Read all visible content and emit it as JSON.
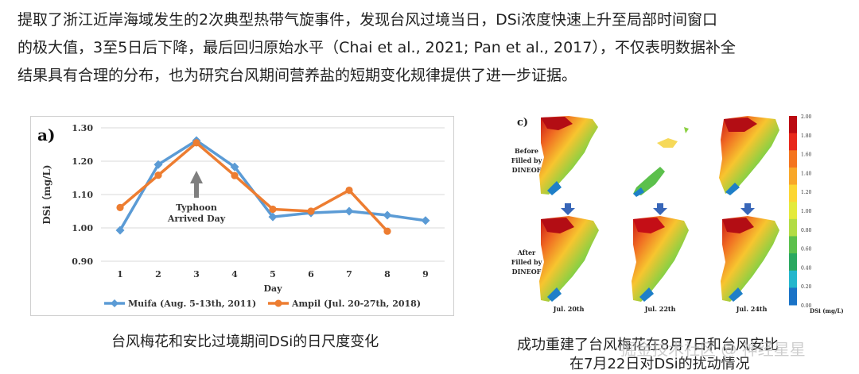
{
  "paragraph": {
    "line1": "提取了浙江近岸海域发生的2次典型热带气旋事件，发现台风过境当日，DSi浓度快速上升至局部时间窗口",
    "line2": "的极大值，3至5日后下降，最后回归原始水平（Chai et al., 2021; Pan et al., 2017），不仅表明数据补全",
    "line3": "结果具有合理的分布，也为研究台风期间营养盐的短期变化规律提供了进一步证据。"
  },
  "chart_data": [
    {
      "type": "line",
      "panel_label": "a)",
      "xlabel": "Day",
      "ylabel": "DSi（mg/L)",
      "x": [
        1,
        2,
        3,
        4,
        5,
        6,
        7,
        8,
        9
      ],
      "x_ticks": [
        "1",
        "2",
        "3",
        "4",
        "5",
        "6",
        "7",
        "8",
        "9"
      ],
      "y_ticks": [
        "0.90",
        "1.00",
        "1.10",
        "1.20",
        "1.30"
      ],
      "ylim": [
        0.9,
        1.3
      ],
      "grid": true,
      "legend_position": "bottom",
      "annotation": {
        "line1": "Typhoon",
        "line2": "Arrived Day",
        "x": 3
      },
      "series": [
        {
          "name": "Muifa (Aug. 5-13th, 2011)",
          "color": "#5b9bd5",
          "marker": "diamond",
          "x": [
            1,
            2,
            3,
            4,
            5,
            6,
            7,
            8,
            9
          ],
          "values": [
            0.993,
            1.19,
            1.262,
            1.183,
            1.033,
            1.045,
            1.05,
            1.038,
            1.022
          ]
        },
        {
          "name": "Ampil (Jul. 20-27th, 2018)",
          "color": "#ed7d31",
          "marker": "circle",
          "x": [
            1,
            2,
            3,
            4,
            5,
            6,
            7,
            8
          ],
          "values": [
            1.061,
            1.158,
            1.255,
            1.157,
            1.056,
            1.05,
            1.113,
            0.99
          ]
        }
      ]
    }
  ],
  "caption_a": "台风梅花和安比过境期间DSi的日尺度变化",
  "panel_c": {
    "label": "c)",
    "before": [
      "Before",
      "Filled by",
      "DINEOF"
    ],
    "after": [
      "After",
      "Filled by",
      "DINEOF"
    ],
    "dates": [
      "Jul. 20th",
      "Jul. 22th",
      "Jul. 24th"
    ],
    "colorbar_ticks": [
      "2.00",
      "1.80",
      "1.60",
      "1.40",
      "1.20",
      "1.00",
      "0.80",
      "0.60",
      "0.40",
      "0.20",
      "0.00"
    ],
    "colorbar_label": "DSi (mg/L)",
    "colorbar_colors": [
      "#bb0a12",
      "#e8281b",
      "#f4741f",
      "#f8a729",
      "#fcd633",
      "#e4ea3b",
      "#b2dc45",
      "#5cc04c",
      "#2aa860",
      "#24b6cc",
      "#1a73c7"
    ]
  },
  "caption_c": {
    "line1": "成功重建了台风梅花在8月7日和台风安比",
    "line2": "在7月22日对DSi的扰动情况"
  },
  "watermark": "掘金技术社区 @ 神经星星"
}
